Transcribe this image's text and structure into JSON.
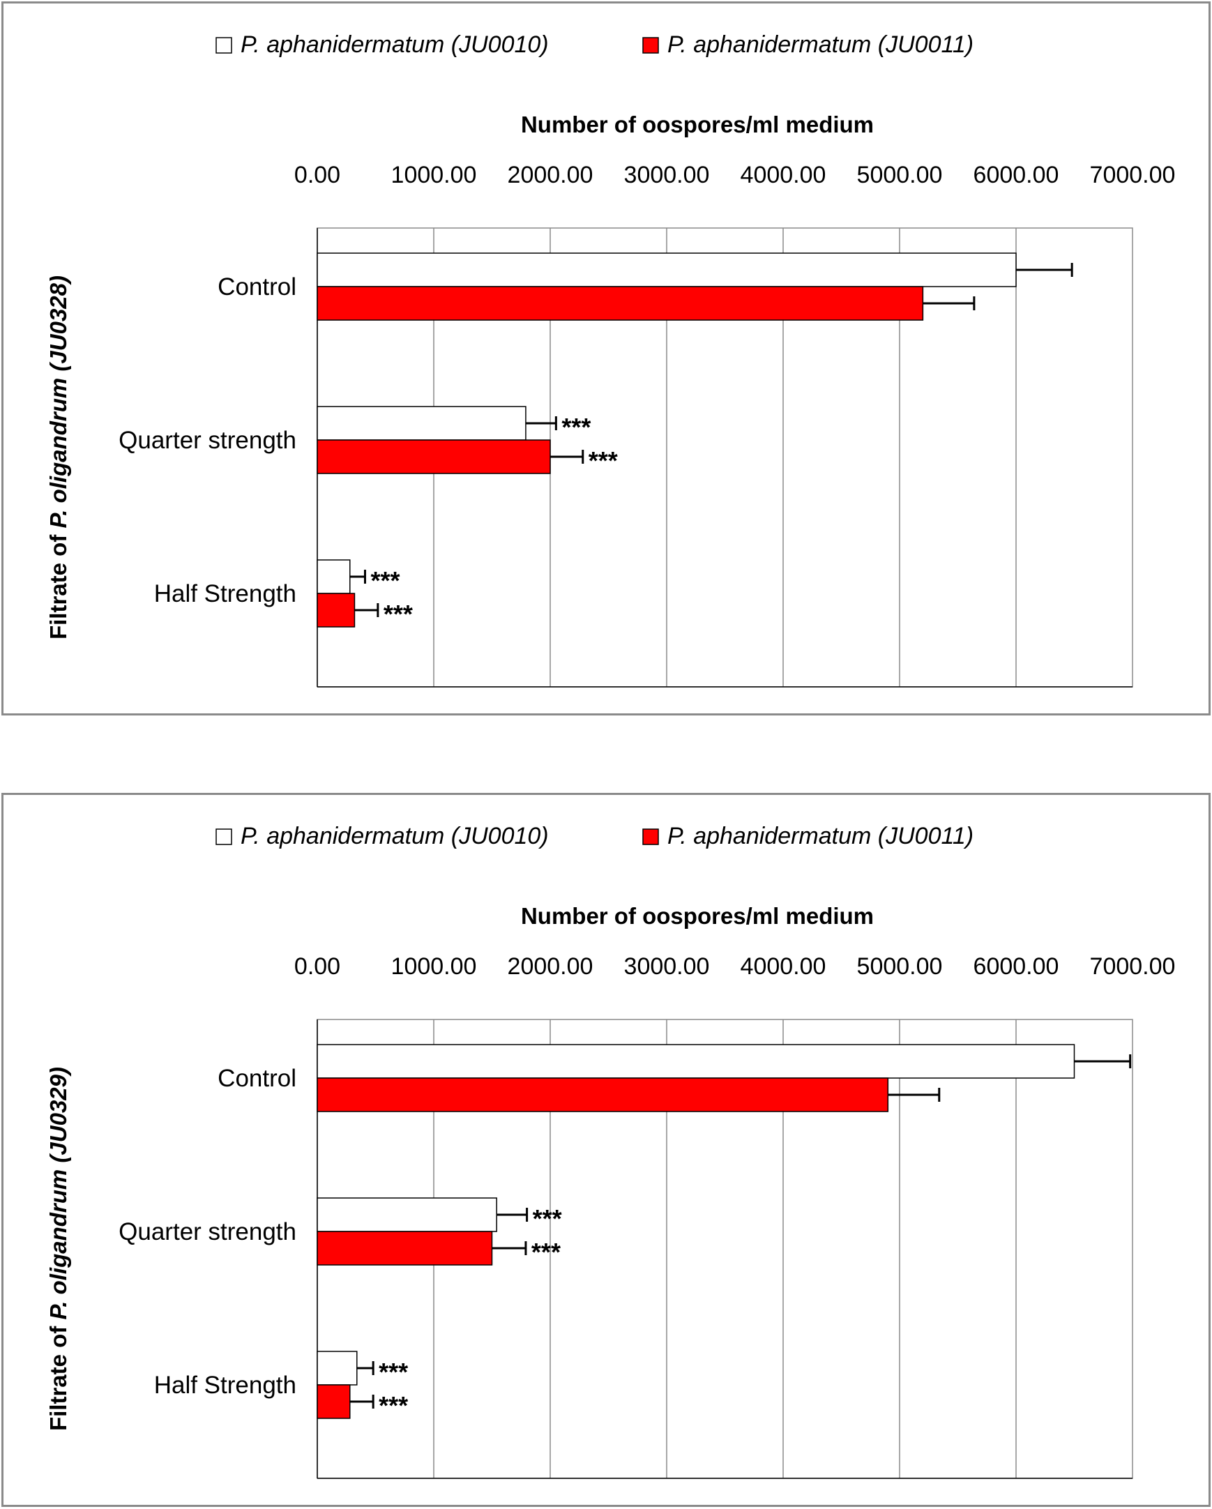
{
  "chart_data": [
    {
      "type": "bar",
      "orientation": "horizontal",
      "xlabel": "Number of oospores/ml medium",
      "ylabel": {
        "prefix": "Filtrate of ",
        "italic": "P. oligandrum (JU0328)"
      },
      "xlim": [
        0,
        7000
      ],
      "xticks": [
        "0.00",
        "1000.00",
        "2000.00",
        "3000.00",
        "4000.00",
        "5000.00",
        "6000.00",
        "7000.00"
      ],
      "x_axis_position": "top",
      "grid": true,
      "legend_position": "top",
      "categories": [
        "Control",
        "Quarter strength",
        "Half Strength"
      ],
      "series": [
        {
          "name": "P. aphanidermatum (JU0010)",
          "color": "#ffffff",
          "values": [
            6000,
            1790,
            280
          ],
          "errors": [
            480,
            260,
            130
          ],
          "annotations": [
            "",
            "***",
            "***"
          ]
        },
        {
          "name": "P. aphanidermatum (JU0011)",
          "color": "#ff0000",
          "values": [
            5200,
            2000,
            320
          ],
          "errors": [
            440,
            280,
            200
          ],
          "annotations": [
            "",
            "***",
            "***"
          ]
        }
      ]
    },
    {
      "type": "bar",
      "orientation": "horizontal",
      "xlabel": "Number of oospores/ml medium",
      "ylabel": {
        "prefix": "Filtrate of ",
        "italic": "P. oligandrum (JU0329)"
      },
      "xlim": [
        0,
        7000
      ],
      "xticks": [
        "0.00",
        "1000.00",
        "2000.00",
        "3000.00",
        "4000.00",
        "5000.00",
        "6000.00",
        "7000.00"
      ],
      "x_axis_position": "top",
      "grid": true,
      "legend_position": "top",
      "categories": [
        "Control",
        "Quarter strength",
        "Half Strength"
      ],
      "series": [
        {
          "name": "P. aphanidermatum (JU0010)",
          "color": "#ffffff",
          "values": [
            6500,
            1540,
            340
          ],
          "errors": [
            480,
            260,
            140
          ],
          "annotations": [
            "",
            "***",
            "***"
          ]
        },
        {
          "name": "P. aphanidermatum (JU0011)",
          "color": "#ff0000",
          "values": [
            4900,
            1500,
            280
          ],
          "errors": [
            440,
            290,
            200
          ],
          "annotations": [
            "",
            "***",
            "***"
          ]
        }
      ]
    }
  ]
}
